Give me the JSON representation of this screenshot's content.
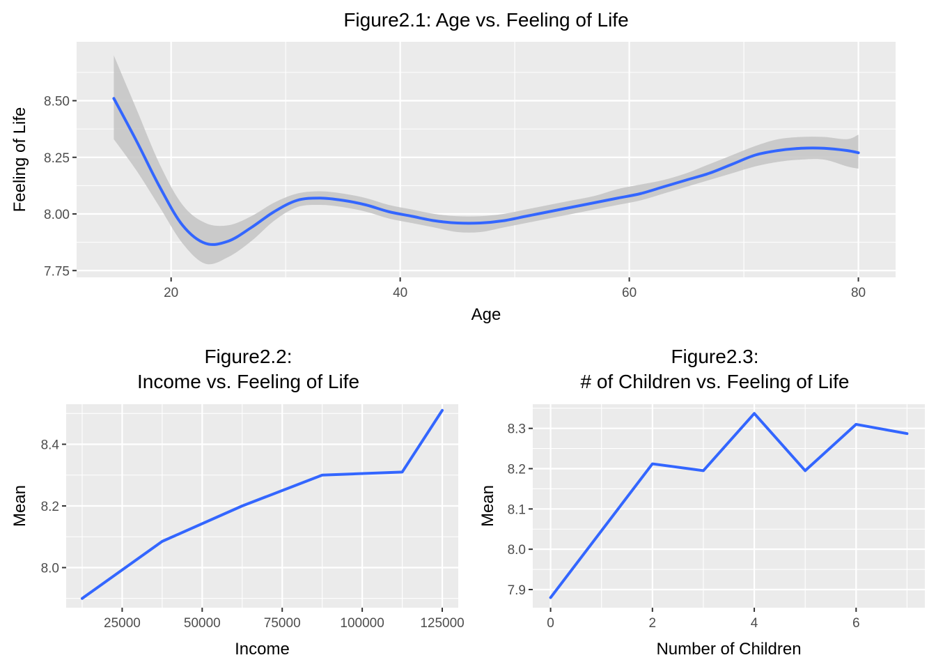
{
  "chart_data": [
    {
      "type": "line",
      "title": "Figure2.1: Age vs. Feeling of Life",
      "xlabel": "Age",
      "ylabel": "Feeling of Life",
      "xlim": [
        11.75,
        83.25
      ],
      "ylim": [
        7.72,
        8.76
      ],
      "xticks": [
        20,
        40,
        60,
        80
      ],
      "xtick_labels": [
        "20",
        "40",
        "60",
        "80"
      ],
      "xminor": [
        30,
        50,
        70
      ],
      "yticks": [
        7.75,
        8.0,
        8.25,
        8.5
      ],
      "ytick_labels": [
        "7.75",
        "8.00",
        "8.25",
        "8.50"
      ],
      "yminor": [
        7.875,
        8.125,
        8.375,
        8.625
      ],
      "grid": true,
      "smooth": true,
      "color": "#3366ff",
      "ribbon_color": "#bebebe",
      "x": [
        15,
        17,
        19,
        21,
        23,
        25,
        27,
        29,
        31,
        33,
        35,
        37,
        39,
        41,
        43,
        45,
        47,
        49,
        51,
        53,
        55,
        57,
        59,
        61,
        63,
        65,
        67,
        69,
        71,
        73,
        75,
        77,
        79,
        80
      ],
      "y": [
        8.51,
        8.32,
        8.12,
        7.95,
        7.87,
        7.88,
        7.94,
        8.01,
        8.06,
        8.07,
        8.06,
        8.04,
        8.01,
        7.99,
        7.97,
        7.96,
        7.96,
        7.97,
        7.99,
        8.01,
        8.03,
        8.05,
        8.07,
        8.09,
        8.12,
        8.15,
        8.18,
        8.22,
        8.26,
        8.28,
        8.29,
        8.29,
        8.28,
        8.27
      ],
      "lower": [
        8.33,
        8.19,
        8.03,
        7.87,
        7.78,
        7.81,
        7.88,
        7.97,
        8.03,
        8.04,
        8.03,
        8.01,
        7.98,
        7.96,
        7.94,
        7.92,
        7.92,
        7.94,
        7.96,
        7.98,
        8.0,
        8.02,
        8.04,
        8.06,
        8.09,
        8.12,
        8.15,
        8.18,
        8.21,
        8.23,
        8.24,
        8.24,
        8.21,
        8.2
      ],
      "upper": [
        8.7,
        8.46,
        8.22,
        8.04,
        7.96,
        7.95,
        7.99,
        8.05,
        8.09,
        8.1,
        8.09,
        8.07,
        8.04,
        8.02,
        8.0,
        7.99,
        7.99,
        8.0,
        8.02,
        8.04,
        8.06,
        8.08,
        8.11,
        8.13,
        8.15,
        8.18,
        8.22,
        8.26,
        8.3,
        8.33,
        8.34,
        8.34,
        8.33,
        8.35
      ]
    },
    {
      "type": "line",
      "title": "Figure2.2:\nIncome vs. Feeling of Life",
      "xlabel": "Income",
      "ylabel": "Mean",
      "xlim": [
        7500,
        130000
      ],
      "ylim": [
        7.87,
        8.53
      ],
      "xticks": [
        25000,
        50000,
        75000,
        100000,
        125000
      ],
      "xtick_labels": [
        "25000",
        "50000",
        "75000",
        "100000",
        "125000"
      ],
      "xminor": [
        12500,
        37500,
        62500,
        87500,
        112500
      ],
      "yticks": [
        8.0,
        8.2,
        8.4
      ],
      "ytick_labels": [
        "8.0",
        "8.2",
        "8.4"
      ],
      "yminor": [
        7.9,
        8.1,
        8.3,
        8.5
      ],
      "grid": true,
      "color": "#3366ff",
      "x": [
        12500,
        37500,
        62500,
        87500,
        112500,
        125000
      ],
      "y": [
        7.9,
        8.085,
        8.2,
        8.3,
        8.31,
        8.51
      ]
    },
    {
      "type": "line",
      "title": "Figure2.3:\n# of Children vs. Feeling of Life",
      "xlabel": "Number of Children",
      "ylabel": "Mean",
      "xlim": [
        -0.35,
        7.35
      ],
      "ylim": [
        7.855,
        8.36
      ],
      "xticks": [
        0,
        2,
        4,
        6
      ],
      "xtick_labels": [
        "0",
        "2",
        "4",
        "6"
      ],
      "xminor": [
        1,
        3,
        5,
        7
      ],
      "yticks": [
        7.9,
        8.0,
        8.1,
        8.2,
        8.3
      ],
      "ytick_labels": [
        "7.9",
        "8.0",
        "8.1",
        "8.2",
        "8.3"
      ],
      "yminor": [
        7.95,
        8.05,
        8.15,
        8.25,
        8.35
      ],
      "grid": true,
      "color": "#3366ff",
      "x": [
        0,
        2,
        3,
        4,
        5,
        6,
        7
      ],
      "y": [
        7.88,
        8.212,
        8.195,
        8.337,
        8.195,
        8.31,
        8.287
      ]
    }
  ]
}
